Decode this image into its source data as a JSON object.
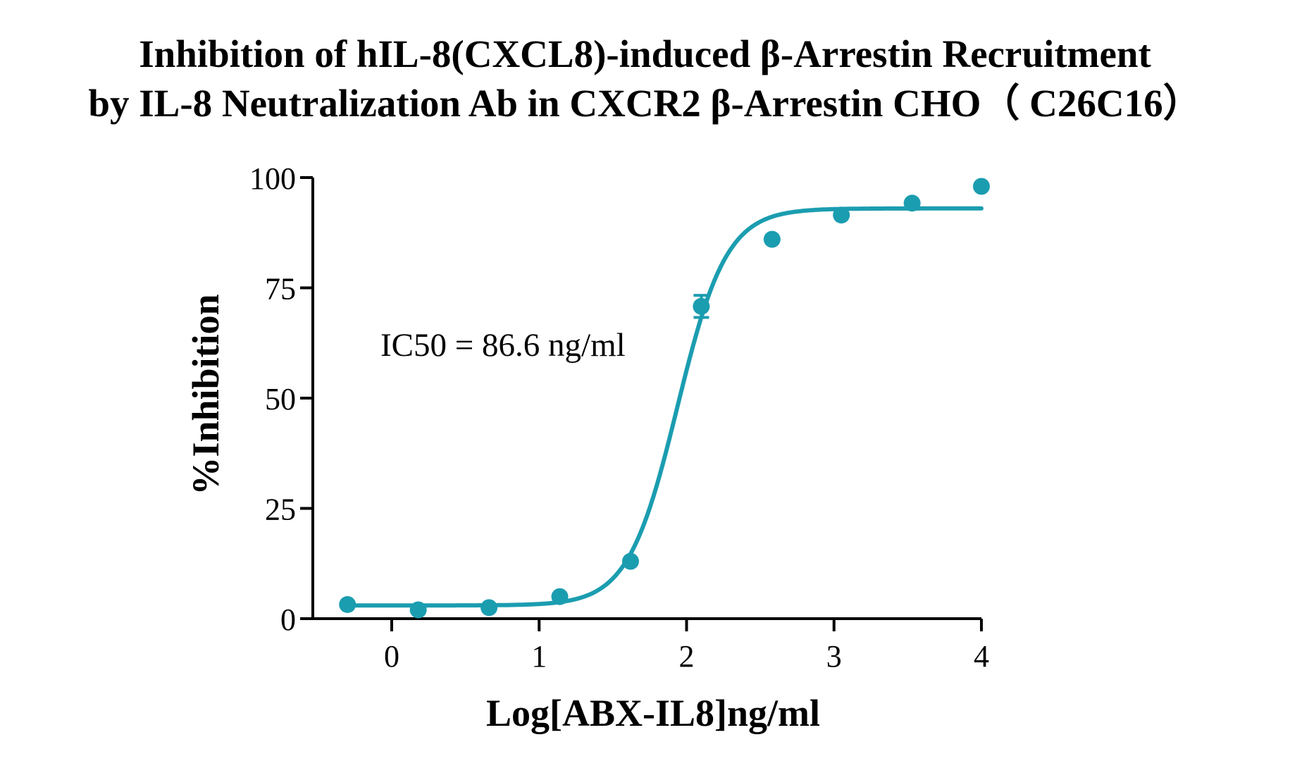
{
  "chart_data": {
    "type": "scatter",
    "title": [
      "Inhibition of hIL-8(CXCL8)-induced β-Arrestin Recruitment",
      "by IL-8 Neutralization Ab in CXCR2 β-Arrestin CHO（ C26C16）"
    ],
    "xlabel": "Log[ABX-IL8]ng/ml",
    "ylabel": "%Inhibition",
    "xlim": [
      -0.55,
      4
    ],
    "ylim": [
      0,
      100
    ],
    "xticks": [
      0,
      1,
      2,
      3,
      4
    ],
    "yticks": [
      0,
      25,
      50,
      75,
      100
    ],
    "annotation": "IC50 = 86.6 ng/ml",
    "color": "#1b9db0",
    "grid": false,
    "legend": "none",
    "points": [
      {
        "x": -0.3,
        "y": 3.2
      },
      {
        "x": 0.18,
        "y": 2.0
      },
      {
        "x": 0.66,
        "y": 2.5
      },
      {
        "x": 1.14,
        "y": 5.0
      },
      {
        "x": 1.62,
        "y": 13.0
      },
      {
        "x": 2.1,
        "y": 70.8,
        "err": 2.5
      },
      {
        "x": 2.58,
        "y": 86.0
      },
      {
        "x": 3.05,
        "y": 91.5
      },
      {
        "x": 3.53,
        "y": 94.2
      },
      {
        "x": 4.0,
        "y": 98.0
      }
    ],
    "fit": {
      "model": "4PL",
      "bottom": 3.0,
      "top": 93.0,
      "log_ic50": 1.9375,
      "hill_slope": 2.6
    }
  }
}
